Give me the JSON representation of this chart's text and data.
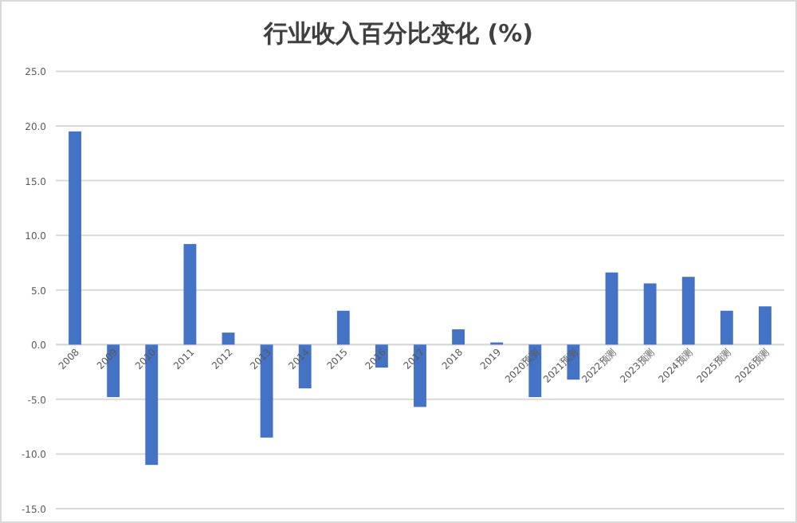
{
  "chart_data": {
    "type": "bar",
    "title": "行业收入百分比变化 (%)",
    "categories": [
      "2008",
      "2009",
      "2010",
      "2011",
      "2012",
      "2013",
      "2014",
      "2015",
      "2016",
      "2017",
      "2018",
      "2019",
      "2020预测",
      "2021预测",
      "2022预测",
      "2023预测",
      "2024预测",
      "2025预测",
      "2026预测"
    ],
    "series": [
      {
        "color": "#4472c4",
        "values": [
          19.5,
          -4.8,
          -11.0,
          9.2,
          1.1,
          -8.5,
          -4.0,
          3.1,
          -2.1,
          -5.7,
          1.4,
          0.2,
          -4.8,
          -3.2,
          6.6,
          5.6,
          6.2,
          3.1,
          3.5
        ]
      }
    ],
    "ylim": [
      -15,
      25
    ],
    "yticks": [
      {
        "value": -15,
        "label": "-15.0"
      },
      {
        "value": -10,
        "label": "-10.0"
      },
      {
        "value": -5,
        "label": "-5.0"
      },
      {
        "value": 0,
        "label": "0.0"
      },
      {
        "value": 5,
        "label": "5.0"
      },
      {
        "value": 10,
        "label": "10.0"
      },
      {
        "value": 15,
        "label": "15.0"
      },
      {
        "value": 20,
        "label": "20.0"
      },
      {
        "value": 25,
        "label": "25.0"
      }
    ],
    "grid": "y"
  }
}
